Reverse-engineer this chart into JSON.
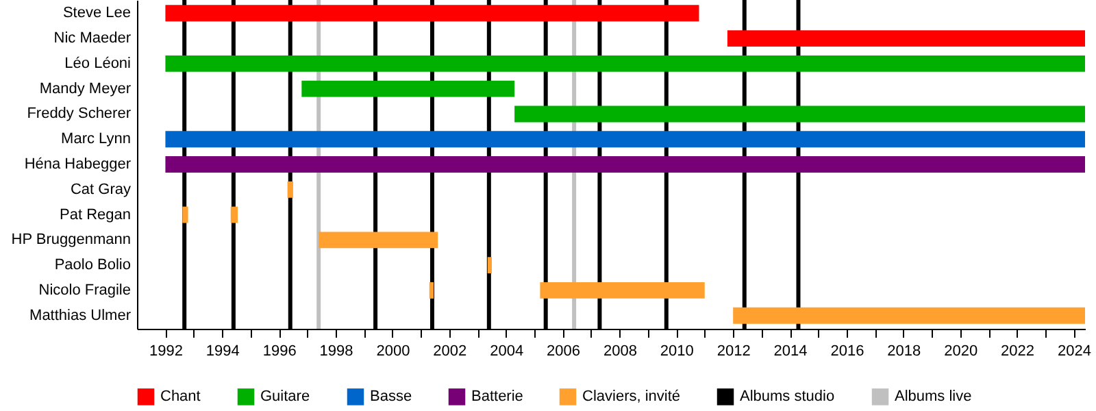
{
  "chart_data": {
    "type": "bar",
    "orientation": "horizontal",
    "legend": "bottom",
    "grid": false,
    "categories": [
      "Steve Lee",
      "Nic Maeder",
      "Léo Léoni",
      "Mandy Meyer",
      "Freddy Scherer",
      "Marc Lynn",
      "Héna Habegger",
      "Cat Gray",
      "Pat Regan",
      "HP Bruggenmann",
      "Paolo Bolio",
      "Nicolo Fragile",
      "Matthias Ulmer"
    ],
    "series": [
      {
        "name": "Chant",
        "color": "#ff0000",
        "base": [
          1992,
          2011.8,
          null,
          null,
          null,
          null,
          null,
          null,
          null,
          null,
          null,
          null,
          null
        ],
        "values": [
          18.8,
          12.6,
          null,
          null,
          null,
          null,
          null,
          null,
          null,
          null,
          null,
          null,
          null
        ]
      },
      {
        "name": "Guitare",
        "color": "#00b000",
        "base": [
          null,
          null,
          1992,
          1996.8,
          2004.3,
          null,
          null,
          null,
          null,
          null,
          null,
          null,
          null
        ],
        "values": [
          null,
          null,
          32.4,
          7.5,
          20.1,
          null,
          null,
          null,
          null,
          null,
          null,
          null,
          null
        ]
      },
      {
        "name": "Basse",
        "color": "#0066cc",
        "base": [
          null,
          null,
          null,
          null,
          null,
          1992,
          null,
          null,
          null,
          null,
          null,
          null,
          null
        ],
        "values": [
          null,
          null,
          null,
          null,
          null,
          32.4,
          null,
          null,
          null,
          null,
          null,
          null,
          null
        ]
      },
      {
        "name": "Batterie",
        "color": "#770077",
        "base": [
          null,
          null,
          null,
          null,
          null,
          null,
          1992,
          null,
          null,
          null,
          null,
          null,
          null
        ],
        "values": [
          null,
          null,
          null,
          null,
          null,
          null,
          32.4,
          null,
          null,
          null,
          null,
          null,
          null
        ]
      },
      {
        "name": "Claviers, invité",
        "color": "#ffa02f",
        "base": [
          null,
          null,
          null,
          null,
          null,
          null,
          null,
          1996.3,
          1992.6,
          1997.4,
          2003.35,
          2001.3,
          2012
        ],
        "values": [
          null,
          null,
          null,
          null,
          null,
          null,
          null,
          0.2,
          0.2,
          4.2,
          0.15,
          0.15,
          12.4
        ]
      },
      {
        "color": "#ffa02f",
        "base": [
          null,
          null,
          null,
          null,
          null,
          null,
          null,
          null,
          1994.3,
          null,
          null,
          2005.2,
          null
        ],
        "values": [
          null,
          null,
          null,
          null,
          null,
          null,
          null,
          null,
          0.25,
          null,
          null,
          5.8,
          null
        ]
      }
    ],
    "xlim": [
      1991,
      2024.4
    ],
    "xticks": [
      1992,
      {
        "value": 1993,
        "label": null
      },
      1994,
      {
        "value": 1995,
        "label": null
      },
      1996,
      {
        "value": 1997,
        "label": null
      },
      1998,
      {
        "value": 1999,
        "label": null
      },
      2000,
      {
        "value": 2001,
        "label": null
      },
      2002,
      {
        "value": 2003,
        "label": null
      },
      2004,
      {
        "value": 2005,
        "label": null
      },
      2006,
      {
        "value": 2007,
        "label": null
      },
      2008,
      {
        "value": 2009,
        "label": null
      },
      2010,
      {
        "value": 2011,
        "label": null
      },
      2012,
      {
        "value": 2013,
        "label": null
      },
      2014,
      {
        "value": 2015,
        "label": null
      },
      2016,
      {
        "value": 2017,
        "label": null
      },
      2018,
      {
        "value": 2019,
        "label": null
      },
      2020,
      {
        "value": 2021,
        "label": null
      },
      2022,
      {
        "value": 2023,
        "label": null
      },
      2024
    ],
    "ref_lines": [
      {
        "axis": "x",
        "value": 1992.67,
        "label": "Albums studio",
        "color": "#000000"
      },
      {
        "axis": "x",
        "value": 1994.4,
        "color": "#000000"
      },
      {
        "axis": "x",
        "value": 1996.4,
        "color": "#000000"
      },
      {
        "axis": "x",
        "value": 1997.4,
        "label": "Albums live",
        "color": "#c0c0c0"
      },
      {
        "axis": "x",
        "value": 1999.4,
        "color": "#000000"
      },
      {
        "axis": "x",
        "value": 2001.4,
        "color": "#000000"
      },
      {
        "axis": "x",
        "value": 2003.4,
        "color": "#000000"
      },
      {
        "axis": "x",
        "value": 2005.4,
        "color": "#000000"
      },
      {
        "axis": "x",
        "value": 2006.4,
        "color": "#c0c0c0"
      },
      {
        "axis": "x",
        "value": 2007.3,
        "color": "#000000"
      },
      {
        "axis": "x",
        "value": 2009.65,
        "color": "#000000"
      },
      {
        "axis": "x",
        "value": 2012.4,
        "color": "#000000"
      },
      {
        "axis": "x",
        "value": 2014.3,
        "color": "#000000"
      }
    ]
  }
}
